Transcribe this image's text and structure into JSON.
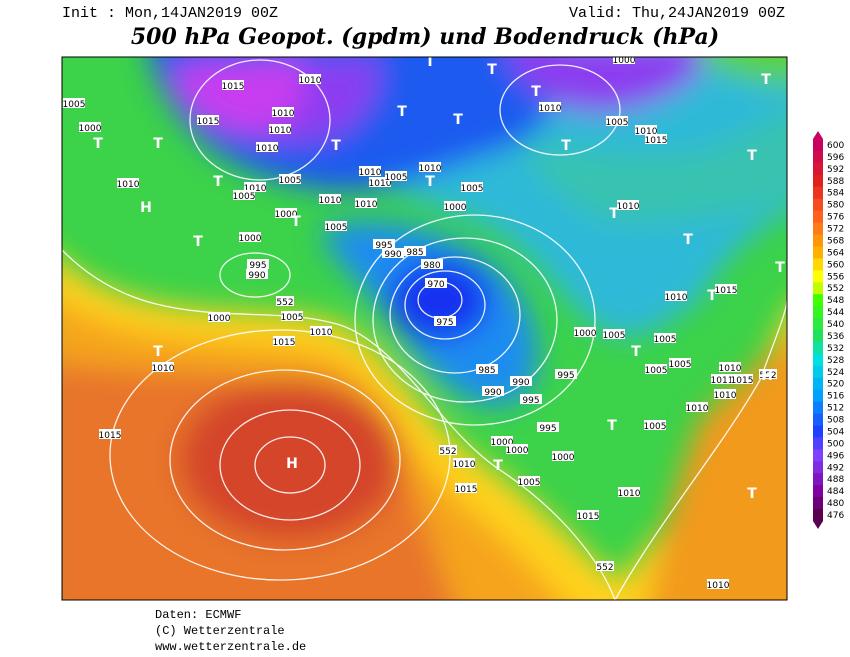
{
  "header": {
    "init": "Init : Mon,14JAN2019 00Z",
    "valid": "Valid: Thu,24JAN2019 00Z",
    "title": "500 hPa Geopot. (gpdm) und Bodendruck (hPa)"
  },
  "colorbar": {
    "levels": [
      600,
      596,
      592,
      588,
      584,
      580,
      576,
      572,
      568,
      564,
      560,
      556,
      552,
      548,
      544,
      540,
      536,
      532,
      528,
      524,
      520,
      516,
      512,
      508,
      504,
      500,
      496,
      492,
      488,
      484,
      480,
      476
    ]
  },
  "isobar_labels": [
    "1015",
    "1010",
    "1015",
    "1010",
    "1010",
    "1010",
    "1005",
    "1000",
    "1010",
    "1010",
    "1005",
    "1005",
    "1000",
    "1010",
    "1005",
    "1010",
    "1010",
    "1010",
    "1005",
    "1010",
    "1005",
    "1000",
    "1000",
    "995",
    "990",
    "995",
    "985",
    "990",
    "980",
    "970",
    "975",
    "985",
    "990",
    "990",
    "995",
    "995",
    "995",
    "1000",
    "1000",
    "1000",
    "1005",
    "1010",
    "1015",
    "1000",
    "1005",
    "1010",
    "1015",
    "1010",
    "1015",
    "1010",
    "1005",
    "1010",
    "1015",
    "1010",
    "1010",
    "1015",
    "1000",
    "1005",
    "1005",
    "1005",
    "1005",
    "1010",
    "1011",
    "1015",
    "1010",
    "1010",
    "1005",
    "1010",
    "1015",
    "1010",
    "1000"
  ],
  "height_labels": [
    "552",
    "552",
    "552",
    "552"
  ],
  "pressure_centres": [
    "H",
    "H",
    "H",
    "T",
    "T",
    "T",
    "T",
    "T",
    "T",
    "T",
    "T",
    "T",
    "T",
    "T",
    "T",
    "T",
    "T",
    "T",
    "T",
    "T",
    "T",
    "T",
    "T",
    "T",
    "T",
    "T",
    "T"
  ],
  "footer": {
    "source": "Daten: ECMWF",
    "copyright": "(C) Wetterzentrale",
    "url": "www.wetterzentrale.de"
  }
}
